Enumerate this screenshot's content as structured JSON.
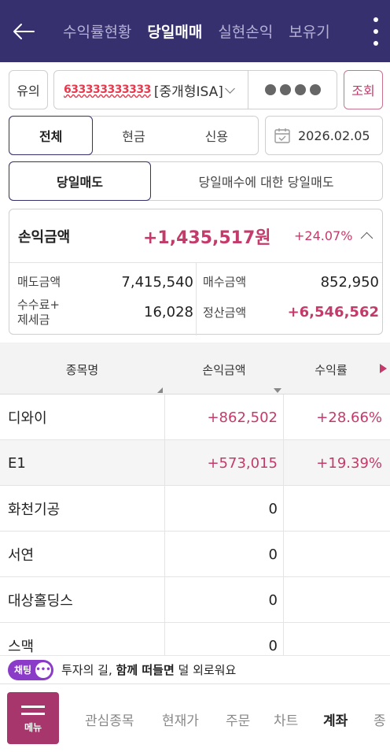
{
  "header": {
    "tabs": [
      "수익률현황",
      "당일매매",
      "실현손익",
      "보유기"
    ],
    "active_tab": "당일매매"
  },
  "account": {
    "yuui_label": "유의",
    "account_number": "633333333333",
    "account_type": "[중개형ISA]",
    "search_label": "조회"
  },
  "filter": {
    "segments": [
      "전체",
      "현금",
      "신용"
    ],
    "selected_segment": "전체",
    "date": "2026.02.05"
  },
  "mode": {
    "options": [
      "당일매도",
      "당일매수에 대한 당일매도"
    ],
    "selected": "당일매도"
  },
  "summary": {
    "pl_label": "손익금액",
    "pl_amount": "+1,435,517원",
    "pl_rate": "+24.07%",
    "sell_label": "매도금액",
    "sell_value": "7,415,540",
    "buy_label": "매수금액",
    "buy_value": "852,950",
    "fee_label_1": "수수료+",
    "fee_label_2": "제세금",
    "fee_value": "16,028",
    "settle_label": "정산금액",
    "settle_value": "+6,546,562"
  },
  "table": {
    "headers": [
      "종목명",
      "손익금액",
      "수익률"
    ],
    "rows": [
      {
        "name": "디와이",
        "pl": "+862,502",
        "rate": "+28.66%"
      },
      {
        "name": "E1",
        "pl": "+573,015",
        "rate": "+19.39%"
      },
      {
        "name": "화천기공",
        "pl": "0",
        "rate": ""
      },
      {
        "name": "서연",
        "pl": "0",
        "rate": ""
      },
      {
        "name": "대상홀딩스",
        "pl": "0",
        "rate": ""
      },
      {
        "name": "스맥",
        "pl": "0",
        "rate": ""
      }
    ]
  },
  "chat": {
    "pill_label": "채팅",
    "text_pre": "투자의 길, ",
    "text_bold": "함께 떠들면",
    "text_post": " 덜 외로워요"
  },
  "bottom_nav": {
    "menu_label": "메뉴",
    "items": [
      "관심종목",
      "현재가",
      "주문",
      "차트",
      "계좌",
      "종"
    ],
    "active": "계좌"
  },
  "colors": {
    "header_bg": "#36306e",
    "accent_red": "#c43a6a",
    "menu_bg": "#a7366c",
    "chat_purple": "#8a3cc9"
  }
}
